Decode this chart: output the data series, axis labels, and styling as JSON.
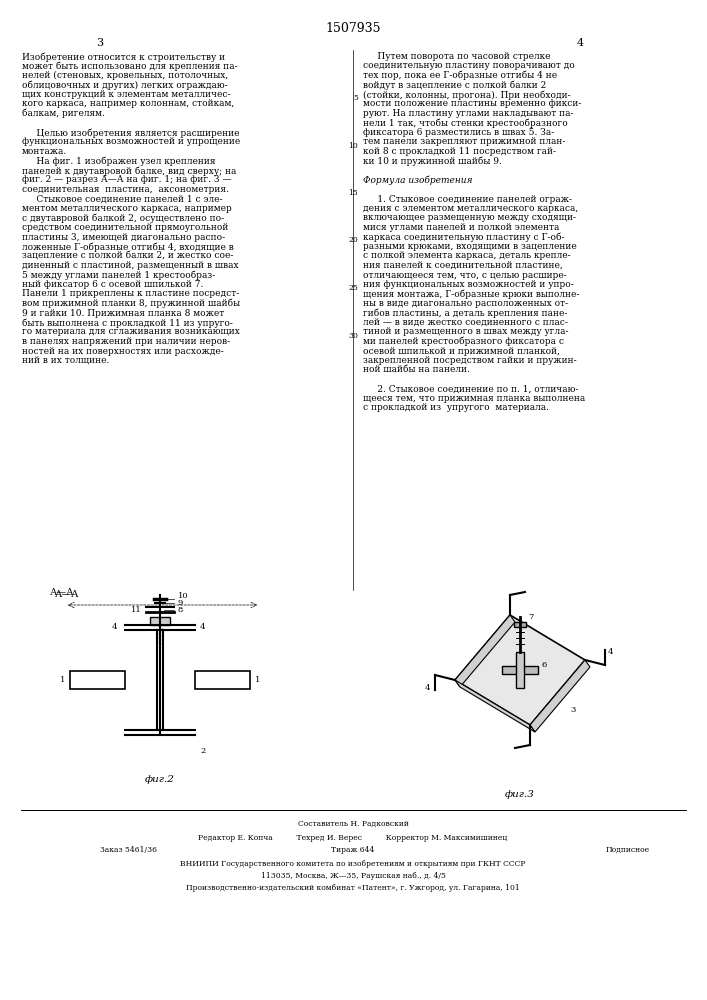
{
  "patent_number": "1507935",
  "page_left": "3",
  "page_right": "4",
  "col_left_text": [
    "Изобретение относится к строительству и",
    "может быть использовано для крепления па-",
    "нелей (стеновых, кровельных, потолочных,",
    "облицовочных и других) легких ограждаю-",
    "щих конструкций к элементам металличес-",
    "кого каркаса, например колоннам, стойкам,",
    "балкам, ригелям.",
    "",
    "     Целью изобретения является расширение",
    "функциональных возможностей и упрощение",
    "монтажа.",
    "     На фиг. 1 изображен узел крепления",
    "панелей к двутавровой балке, вид сверху; на",
    "фиг. 2 — разрез А—А на фиг. 1; на фиг. 3 —",
    "соединительная  пластина,  аксонометрия.",
    "     Стыковое соединение панелей 1 с эле-",
    "ментом металлического каркаса, например",
    "с двутавровой балкой 2, осуществлено по-",
    "средством соединительной прямоугольной",
    "пластины 3, имеющей диагонально распо-",
    "ложенные Г-образные отгибы 4, входящие в",
    "зацепление с полкой балки 2, и жестко сое-",
    "диненный с пластиной, размещенный в швах",
    "5 между углами панелей 1 крестообраз-",
    "ный фиксатор 6 с осевой шпилькой 7.",
    "Панели 1 прикреплены к пластине посредст-",
    "вом прижимной планки 8, пружинной шайбы",
    "9 и гайки 10. Прижимная планка 8 может",
    "быть выполнена с прокладкой 11 из упруго-",
    "го материала для сглаживания возникающих",
    "в панелях напряжений при наличии неров-",
    "ностей на их поверхностях или расхожде-",
    "ний в их толщине."
  ],
  "col_right_text": [
    "     Путем поворота по часовой стрелке",
    "соединительную пластину поворачивают до",
    "тех пор, пока ее Г-образные отгибы 4 не",
    "войдут в зацепление с полкой балки 2",
    "(стойки, колонны, прогона). При необходи-",
    "мости положение пластины временно фикси-",
    "руют. На пластину углами накладывают па-",
    "нели 1 так, чтобы стенки крестообразного",
    "фиксатора 6 разместились в швах 5. За-",
    "тем панели закрепляют прижимной план-",
    "кой 8 с прокладкой 11 посредством гай-",
    "ки 10 и пружинной шайбы 9.",
    "",
    "Формула изобретения",
    "",
    "     1. Стыковое соединение панелей ограж-",
    "дения с элементом металлического каркаса,",
    "включающее размещенную между сходящи-",
    "мися углами панелей и полкой элемента",
    "каркаса соединительную пластину с Г-об-",
    "разными крюками, входящими в зацепление",
    "с полкой элемента каркаса, деталь крепле-",
    "ния панелей к соединительной пластине,",
    "отличающееся тем, что, с целью расшире-",
    "ния функциональных возможностей и упро-",
    "щения монтажа, Г-образные крюки выполне-",
    "ны в виде диагонально расположенных от-",
    "гибов пластины, а деталь крепления пане-",
    "лей — в виде жестко соединенного с плас-",
    "тиной и размещенного в швах между угла-",
    "ми панелей крестообразного фиксатора с",
    "осевой шпилькой и прижимной планкой,",
    "закрепленной посредством гайки и пружин-",
    "ной шайбы на панели.",
    "",
    "     2. Стыковое соединение по п. 1, отличаю-",
    "щееся тем, что прижимная планка выполнена",
    "с прокладкой из  упругого  материала."
  ],
  "line_numbers_right": [
    5,
    10,
    15,
    20,
    25,
    30
  ],
  "fig2_label": "фиг.2",
  "fig3_label": "фиг.3",
  "section_label": "А—А",
  "footer_lines": [
    "Составитель Н. Радковский",
    "Редактор Е. Копча          Техред И. Верес          Корректор М. Максимишинец",
    "Заказ 5461/36                                                          Подписное",
    "Тираж 644",
    "ВНИИПИ Государственного комитета по изобретениям и открытиям при ГКНТ СССР",
    "113035, Москва, Ж—35, Раушская наб., д. 4/5",
    "Производственно-издательский комбинат «Патент», г. Ужгород, ул. Гагарина, 101"
  ],
  "bg_color": "#ffffff",
  "text_color": "#000000",
  "font_size_body": 6.5,
  "font_size_small": 5.5
}
